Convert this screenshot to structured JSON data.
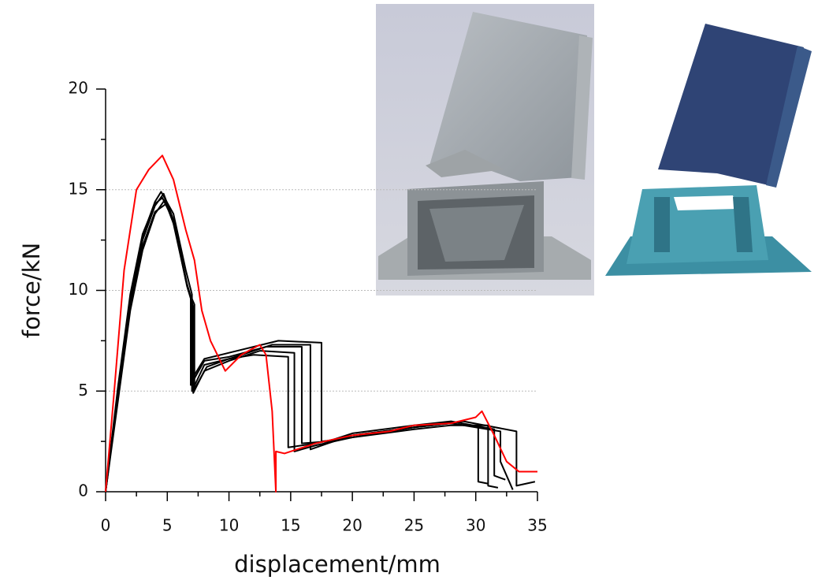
{
  "chart_data": {
    "type": "line",
    "x_label": "displacement/mm",
    "y_label": "force/kN",
    "xlim": [
      0,
      35
    ],
    "xticks": [
      0,
      5,
      10,
      15,
      20,
      25,
      30,
      35
    ],
    "ylim": [
      0,
      20
    ],
    "yticks": [
      0,
      5,
      10,
      15,
      20
    ],
    "grid": true,
    "series": [
      {
        "color": "#000000",
        "x": [
          0,
          1,
          2,
          3,
          4,
          4.7,
          5.5,
          6.5,
          7,
          7,
          8,
          10,
          12,
          14.8,
          14.8,
          17,
          20,
          25,
          28,
          30.2,
          30.2,
          31
        ],
        "values": [
          0,
          5,
          9.5,
          12.5,
          14.2,
          14.8,
          13.5,
          10.5,
          9.5,
          5,
          6.3,
          6.6,
          6.8,
          6.7,
          2.2,
          2.4,
          2.8,
          3.2,
          3.4,
          3.2,
          0.5,
          0.4
        ]
      },
      {
        "color": "#000000",
        "x": [
          0,
          1,
          2,
          3,
          4,
          4.8,
          5.6,
          6.6,
          7.1,
          7.1,
          8,
          10,
          12.5,
          15.3,
          15.3,
          17,
          20,
          25,
          28,
          31,
          31,
          31.8
        ],
        "values": [
          0,
          4.5,
          9,
          12,
          13.8,
          14.5,
          13.2,
          10.2,
          9.2,
          4.9,
          6,
          6.5,
          7,
          6.9,
          2,
          2.3,
          2.7,
          3.1,
          3.3,
          3.3,
          0.3,
          0.2
        ]
      },
      {
        "color": "#000000",
        "x": [
          0,
          1,
          2,
          3,
          4,
          4.6,
          5.4,
          6.4,
          6.9,
          6.9,
          8,
          10,
          13,
          15.9,
          15.9,
          18,
          20,
          25,
          28,
          31.5,
          31.5,
          32.4
        ],
        "values": [
          0,
          5.2,
          9.8,
          12.8,
          14.3,
          14.6,
          13.6,
          10.8,
          9.6,
          5.3,
          6.5,
          6.7,
          7.2,
          7.2,
          2.4,
          2.5,
          2.9,
          3.3,
          3.5,
          3.1,
          0.8,
          0.6
        ]
      },
      {
        "color": "#000000",
        "x": [
          0,
          1,
          2,
          3,
          4,
          4.9,
          5.7,
          6.7,
          7.2,
          7.2,
          8.2,
          10,
          13.5,
          16.6,
          16.6,
          18,
          20,
          25,
          28,
          32,
          32,
          33
        ],
        "values": [
          0,
          4.8,
          9.3,
          12.2,
          13.9,
          14.3,
          13,
          10,
          9.3,
          5.1,
          6.2,
          6.6,
          7.3,
          7.3,
          2.1,
          2.4,
          2.8,
          3.2,
          3.4,
          3,
          1.5,
          0.1
        ]
      },
      {
        "color": "#000000",
        "x": [
          0,
          1,
          2,
          3,
          4,
          4.5,
          5.5,
          6.5,
          7,
          7,
          8,
          10,
          14,
          17.5,
          17.5,
          19,
          22,
          26,
          29,
          33.3,
          33.3,
          34.8
        ],
        "values": [
          0,
          5,
          9.6,
          12.7,
          14.4,
          14.9,
          13.8,
          11,
          9.8,
          5.6,
          6.6,
          6.9,
          7.5,
          7.4,
          2.5,
          2.6,
          2.9,
          3.3,
          3.5,
          3,
          0.3,
          0.5
        ]
      },
      {
        "color": "#ff0000",
        "x": [
          0,
          0.7,
          1.5,
          2.5,
          3.5,
          4.6,
          5.5,
          6.5,
          7.2,
          7.8,
          8.5,
          9.7,
          11,
          12.5,
          13,
          13.5,
          13.8,
          13.8,
          14.5,
          17,
          20,
          23,
          25,
          28,
          30,
          30.5,
          31.5,
          32.5,
          33.5,
          35
        ],
        "values": [
          0,
          5,
          11,
          15,
          16,
          16.7,
          15.5,
          13,
          11.5,
          9,
          7.5,
          6,
          6.8,
          7.3,
          6.8,
          4,
          0,
          2,
          1.9,
          2.4,
          2.8,
          3,
          3.3,
          3.4,
          3.7,
          4,
          2.8,
          1.5,
          1,
          1
        ]
      }
    ]
  }
}
